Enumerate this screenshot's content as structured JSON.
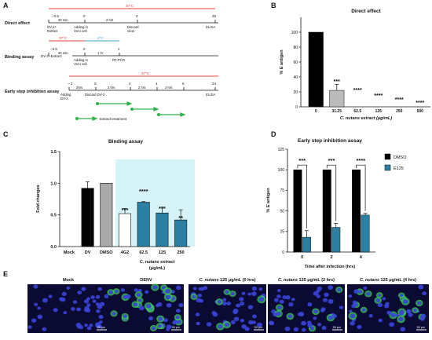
{
  "panels": {
    "A": "A",
    "B": "B",
    "C": "C",
    "D": "D",
    "E": "E"
  },
  "panel_a": {
    "colors": {
      "red": "#e8403a",
      "blue": "#3b9fd8",
      "green": "#2db24a"
    },
    "temp_37": "37°C",
    "temp_4": "4°C",
    "direct": {
      "label": "Direct effect",
      "ticks": [
        "−0.5",
        "0",
        "2",
        "48"
      ],
      "seg_labels": [
        "30 min",
        "2 hrs"
      ],
      "below": [
        "DV-2+\nExtract",
        "Adding in\nVero cell",
        "Discard\nvirus",
        "ELISA"
      ]
    },
    "binding": {
      "label": "Binding assay",
      "ticks": [
        "−0.5",
        "0",
        "1"
      ],
      "seg_labels": [
        "30 min",
        "1 hr"
      ],
      "left_text": "DV-2+Extract",
      "below": [
        "Adding in\nVero cell",
        "RT-PCR"
      ]
    },
    "early": {
      "label": "Early step inhibition assay",
      "ticks": [
        "− 2",
        "0",
        "2",
        "4",
        "6",
        "24"
      ],
      "seg_labels": [
        "2hrs",
        "2 hrs",
        "2 hrs",
        "2 hrs"
      ],
      "below": [
        "Adding\nDV-2",
        "Discard DV-2",
        "ELISA"
      ]
    },
    "legend_label": "Extract treatment"
  },
  "chart_data": [
    {
      "panel": "B",
      "type": "bar",
      "title": "Direct effect",
      "ylabel": "% E antigen",
      "xlabel": "C. nutans extract (μg/mL)",
      "categories": [
        "0",
        "31.25",
        "62.5",
        "125",
        "250",
        "500"
      ],
      "values": [
        100,
        22,
        0,
        0,
        0,
        0
      ],
      "errors": [
        0,
        8,
        0,
        0,
        0,
        0
      ],
      "significance": [
        "",
        "***",
        "****",
        "****",
        "****",
        "****"
      ],
      "yticks": [
        "0",
        "20",
        "40",
        "60",
        "80",
        "100"
      ],
      "ylim": [
        0,
        120
      ],
      "colors": {
        "bar0": "#000000",
        "bar1": "#bbbbbb"
      }
    },
    {
      "panel": "C",
      "type": "bar",
      "title": "Binding assay",
      "ylabel": "Fold changes",
      "xlabel_line1": "C. nutans extract",
      "xlabel_line2": "(μg/mL)",
      "categories": [
        "Mock",
        "DV",
        "DMSO",
        "4G2",
        "62.5",
        "125",
        "250"
      ],
      "values": [
        0,
        0.92,
        1.0,
        0.52,
        0.7,
        0.53,
        0.42
      ],
      "errors": [
        0,
        0.1,
        0,
        0.08,
        0.01,
        0.09,
        0.16
      ],
      "significance": [
        "",
        "",
        "",
        "***",
        "****",
        "***",
        "**"
      ],
      "yticks": [
        "0.0",
        "0.5",
        "1.0",
        "1.5"
      ],
      "ylim": [
        0,
        1.5
      ],
      "colors": {
        "dv": "#000000",
        "dmso": "#aaaaaa",
        "white": "#ffffff",
        "teal": "#2a7fa3",
        "highlight": "#d6f3f7"
      }
    },
    {
      "panel": "D",
      "type": "bar",
      "title": "Early step inhibition assay",
      "ylabel": "% E antigen",
      "xlabel": "Time after infection (hrs)",
      "categories": [
        "0",
        "2",
        "4"
      ],
      "series": [
        {
          "name": "DMSO",
          "values": [
            100,
            100,
            100
          ],
          "errors": [
            0,
            0,
            0
          ],
          "color": "#000000"
        },
        {
          "name": "E125",
          "values": [
            18,
            30,
            45
          ],
          "errors": [
            8,
            5,
            2
          ],
          "color": "#2a7fa3"
        }
      ],
      "significance": [
        "***",
        "***",
        "****"
      ],
      "yticks": [
        "0",
        "25",
        "50",
        "75",
        "100",
        "125"
      ],
      "ylim": [
        0,
        125
      ],
      "legend_position": "right"
    }
  ],
  "panel_e": {
    "labels": [
      "Mock",
      "DENV",
      "C. nutans 125 μg/mL (0 hrs)",
      "C. nutans 125 μg/mL (2 hrs)",
      "C. nutans 125 μg/mL (4 hrs)"
    ],
    "scale": "50 μm",
    "green_levels": [
      0,
      0.6,
      0.18,
      0.12,
      0.4
    ]
  }
}
